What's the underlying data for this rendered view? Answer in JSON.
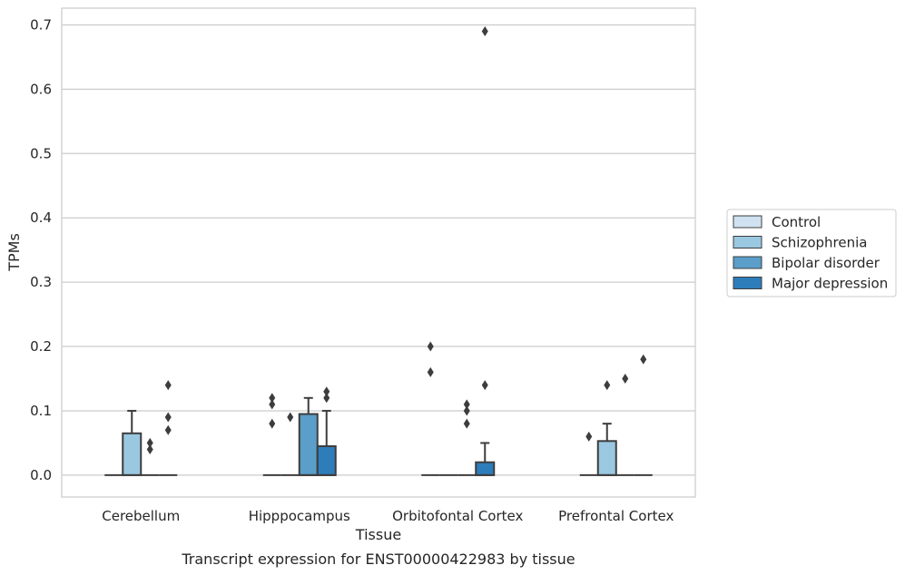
{
  "chart_data": {
    "type": "box",
    "caption": "Transcript expression for ENST00000422983 by tissue",
    "xlabel": "Tissue",
    "ylabel": "TPMs",
    "ylim": [
      -0.034,
      0.726
    ],
    "yticks": [
      "0.0",
      "0.1",
      "0.2",
      "0.3",
      "0.4",
      "0.5",
      "0.6",
      "0.7"
    ],
    "grid": "horizontal",
    "legend_position": "right",
    "categories": [
      "Cerebellum",
      "Hipppocampus",
      "Orbitofontal Cortex",
      "Prefrontal Cortex"
    ],
    "series": [
      {
        "name": "Control",
        "color": "#d0e2f1",
        "boxes": [
          {
            "q1": 0,
            "median": 0,
            "q3": 0,
            "whisker_low": 0,
            "whisker_high": 0,
            "outliers": []
          },
          {
            "q1": 0,
            "median": 0,
            "q3": 0,
            "whisker_low": 0,
            "whisker_high": 0,
            "outliers": [
              0.08,
              0.11,
              0.12
            ]
          },
          {
            "q1": 0,
            "median": 0,
            "q3": 0,
            "whisker_low": 0,
            "whisker_high": 0,
            "outliers": [
              0.16,
              0.2
            ]
          },
          {
            "q1": 0,
            "median": 0,
            "q3": 0,
            "whisker_low": 0,
            "whisker_high": 0,
            "outliers": [
              0.06
            ]
          }
        ]
      },
      {
        "name": "Schizophrenia",
        "color": "#9ac8e0",
        "boxes": [
          {
            "q1": 0,
            "median": 0,
            "q3": 0.065,
            "whisker_low": 0,
            "whisker_high": 0.1,
            "outliers": []
          },
          {
            "q1": 0,
            "median": 0,
            "q3": 0,
            "whisker_low": 0,
            "whisker_high": 0,
            "outliers": [
              0.09
            ]
          },
          {
            "q1": 0,
            "median": 0,
            "q3": 0,
            "whisker_low": 0,
            "whisker_high": 0,
            "outliers": []
          },
          {
            "q1": 0,
            "median": 0,
            "q3": 0.053,
            "whisker_low": 0,
            "whisker_high": 0.08,
            "outliers": [
              0.14
            ]
          }
        ]
      },
      {
        "name": "Bipolar disorder",
        "color": "#5a9ec9",
        "boxes": [
          {
            "q1": 0,
            "median": 0,
            "q3": 0,
            "whisker_low": 0,
            "whisker_high": 0,
            "outliers": [
              0.04,
              0.05
            ]
          },
          {
            "q1": 0,
            "median": 0,
            "q3": 0.095,
            "whisker_low": 0,
            "whisker_high": 0.12,
            "outliers": []
          },
          {
            "q1": 0,
            "median": 0,
            "q3": 0,
            "whisker_low": 0,
            "whisker_high": 0,
            "outliers": [
              0.08,
              0.1,
              0.11
            ]
          },
          {
            "q1": 0,
            "median": 0,
            "q3": 0,
            "whisker_low": 0,
            "whisker_high": 0,
            "outliers": [
              0.15
            ]
          }
        ]
      },
      {
        "name": "Major depression",
        "color": "#2d7dbb",
        "boxes": [
          {
            "q1": 0,
            "median": 0,
            "q3": 0,
            "whisker_low": 0,
            "whisker_high": 0,
            "outliers": [
              0.07,
              0.09,
              0.14
            ]
          },
          {
            "q1": 0,
            "median": 0,
            "q3": 0.045,
            "whisker_low": 0,
            "whisker_high": 0.1,
            "outliers": [
              0.12,
              0.13
            ]
          },
          {
            "q1": 0,
            "median": 0,
            "q3": 0.02,
            "whisker_low": 0,
            "whisker_high": 0.05,
            "outliers": [
              0.14,
              0.69
            ]
          },
          {
            "q1": 0,
            "median": 0,
            "q3": 0,
            "whisker_low": 0,
            "whisker_high": 0,
            "outliers": [
              0.18
            ]
          }
        ]
      }
    ]
  }
}
